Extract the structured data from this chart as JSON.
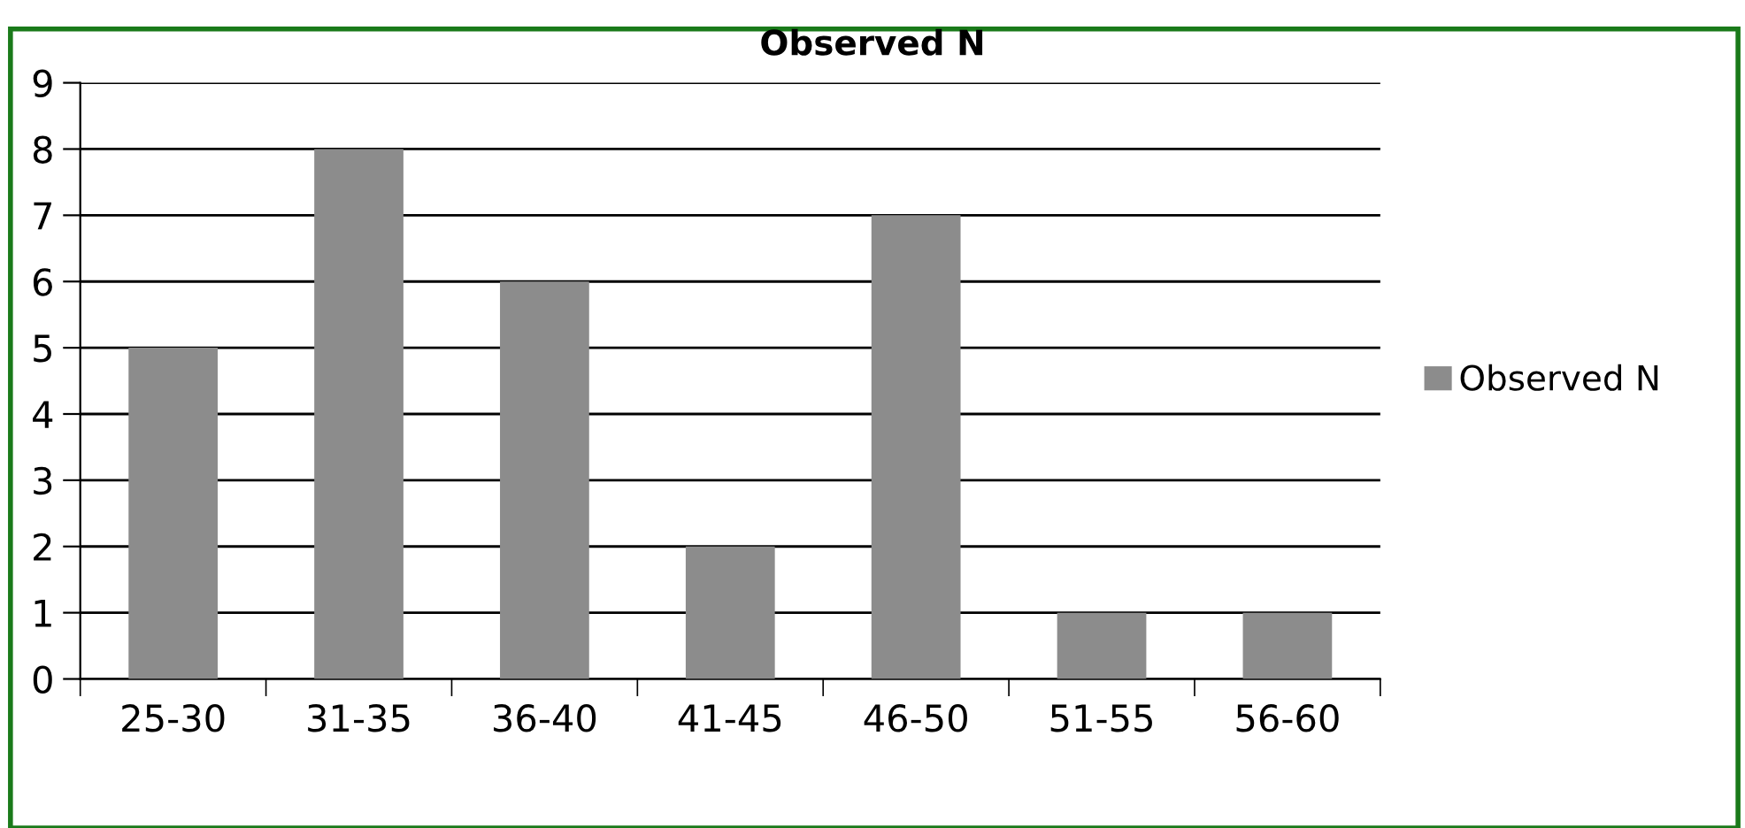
{
  "chart_data": {
    "type": "bar",
    "title": "Observed N",
    "categories": [
      "25-30",
      "31-35",
      "36-40",
      "41-45",
      "46-50",
      "51-55",
      "56-60"
    ],
    "series": [
      {
        "name": "Observed N",
        "color": "#8c8c8c",
        "values": [
          5,
          8,
          6,
          2,
          7,
          1,
          1
        ]
      }
    ],
    "ylim": [
      0,
      9
    ],
    "yticks": [
      0,
      1,
      2,
      3,
      4,
      5,
      6,
      7,
      8,
      9
    ],
    "grid": "y",
    "legend": "right"
  }
}
